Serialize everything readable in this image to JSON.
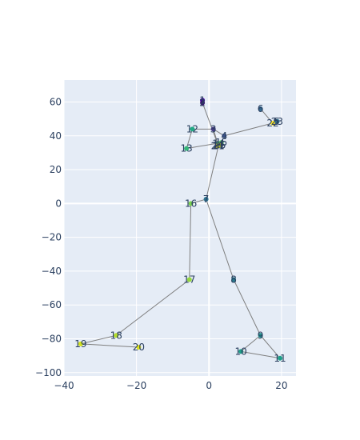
{
  "chart_data": {
    "type": "scatter",
    "title": "",
    "xlabel": "",
    "ylabel": "",
    "xlim": [
      -40,
      24
    ],
    "ylim": [
      -102,
      73
    ],
    "xticks": [
      -40,
      -20,
      0,
      20
    ],
    "yticks": [
      -100,
      -80,
      -60,
      -40,
      -20,
      0,
      20,
      40,
      60
    ],
    "grid": true,
    "legend": "none",
    "colors": {
      "plot_bg": "#e5ecf6",
      "grid": "#ffffff",
      "line": "#7f7f7f",
      "text": "#2a3f5f"
    },
    "points": [
      {
        "label": "1",
        "x": -1.8,
        "y": 61,
        "color": "#46039f"
      },
      {
        "label": "2",
        "x": -1.8,
        "y": 59.5,
        "color": "#3b0f70"
      },
      {
        "label": "3",
        "x": 1.2,
        "y": 44,
        "color": "#443a83"
      },
      {
        "label": "4",
        "x": 4.2,
        "y": 40,
        "color": "#3b528b"
      },
      {
        "label": "5",
        "x": 18.6,
        "y": 48.5,
        "color": "#31688e"
      },
      {
        "label": "6",
        "x": 14.2,
        "y": 56,
        "color": "#31688e"
      },
      {
        "label": "7",
        "x": -0.8,
        "y": 2.5,
        "color": "#2c728e"
      },
      {
        "label": "8",
        "x": 6.8,
        "y": -45,
        "color": "#287c8e"
      },
      {
        "label": "9",
        "x": 14.2,
        "y": -78,
        "color": "#21918c"
      },
      {
        "label": "10",
        "x": 8.8,
        "y": -87.5,
        "color": "#1f9e89"
      },
      {
        "label": "11",
        "x": 19.6,
        "y": -91.5,
        "color": "#1f9e89"
      },
      {
        "label": "12",
        "x": -4.6,
        "y": 44,
        "color": "#22a884"
      },
      {
        "label": "13",
        "x": -6.2,
        "y": 32.5,
        "color": "#35b779"
      },
      {
        "label": "14",
        "x": 2.6,
        "y": 35.5,
        "color": "#44bf70"
      },
      {
        "label": "15",
        "x": 3.4,
        "y": 36,
        "color": "#54c568"
      },
      {
        "label": "16",
        "x": -5.0,
        "y": 0,
        "color": "#7ad151"
      },
      {
        "label": "17",
        "x": -5.4,
        "y": -45,
        "color": "#95d840"
      },
      {
        "label": "18",
        "x": -25.6,
        "y": -78,
        "color": "#b5de2b"
      },
      {
        "label": "19",
        "x": -35.4,
        "y": -83,
        "color": "#d2e21b"
      },
      {
        "label": "20",
        "x": -19.4,
        "y": -85,
        "color": "#dde318"
      },
      {
        "label": "21",
        "x": 2.6,
        "y": 34,
        "color": "#e5e419"
      },
      {
        "label": "22",
        "x": 17.6,
        "y": 47.5,
        "color": "#fde725"
      },
      {
        "label": "23",
        "x": 18.8,
        "y": 48.5,
        "color": "#2c728e"
      },
      {
        "label": "24",
        "x": 2.2,
        "y": 34,
        "color": "#fde725"
      },
      {
        "label": "25",
        "x": 3.0,
        "y": 34.5,
        "color": "#dde318"
      }
    ],
    "edges": [
      [
        1,
        2
      ],
      [
        2,
        21
      ],
      [
        21,
        3
      ],
      [
        3,
        12
      ],
      [
        3,
        4
      ],
      [
        4,
        22
      ],
      [
        22,
        6
      ],
      [
        12,
        13
      ],
      [
        13,
        15
      ],
      [
        21,
        7
      ],
      [
        7,
        8
      ],
      [
        8,
        9
      ],
      [
        9,
        10
      ],
      [
        10,
        11
      ],
      [
        9,
        11
      ],
      [
        7,
        16
      ],
      [
        16,
        17
      ],
      [
        17,
        18
      ],
      [
        18,
        19
      ],
      [
        19,
        20
      ]
    ]
  }
}
